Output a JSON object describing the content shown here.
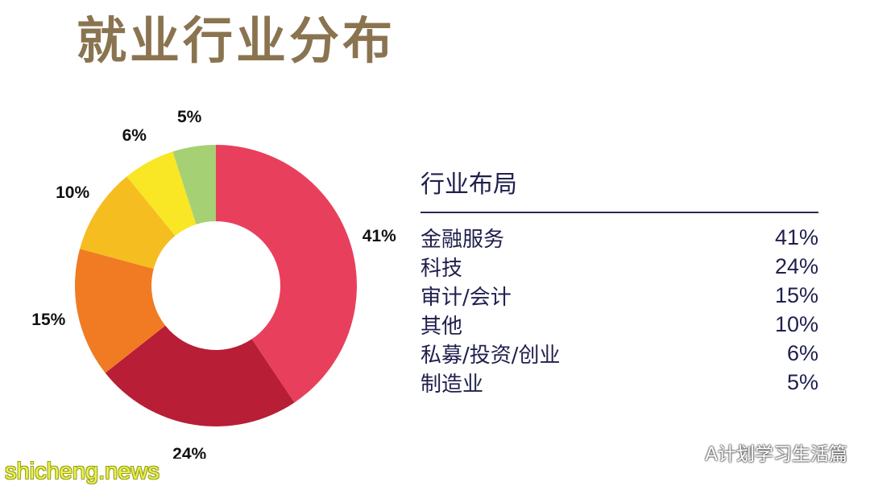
{
  "title": "就业行业分布",
  "chart_data": {
    "type": "pie",
    "donut": true,
    "slices": [
      {
        "label": "41%",
        "value": 41,
        "color": "#e8405c"
      },
      {
        "label": "24%",
        "value": 24,
        "color": "#b81e36"
      },
      {
        "label": "15%",
        "value": 15,
        "color": "#f07b23"
      },
      {
        "label": "10%",
        "value": 10,
        "color": "#f5bd1f"
      },
      {
        "label": "6%",
        "value": 6,
        "color": "#f9e625"
      },
      {
        "label": "5%",
        "value": 5,
        "color": "#a6d074"
      }
    ]
  },
  "legend": {
    "title": "行业布局",
    "rows": [
      {
        "name": "金融服务",
        "value": "41%"
      },
      {
        "name": "科技",
        "value": "24%"
      },
      {
        "name": "审计/会计",
        "value": "15%"
      },
      {
        "name": "其他",
        "value": "10%"
      },
      {
        "name": "私募/投资/创业",
        "value": "6%"
      },
      {
        "name": "制造业",
        "value": "5%"
      }
    ]
  },
  "watermarks": {
    "site": "shicheng.news",
    "account": "A计划学习生活篇"
  },
  "icons": {
    "account": "wechat-icon"
  }
}
